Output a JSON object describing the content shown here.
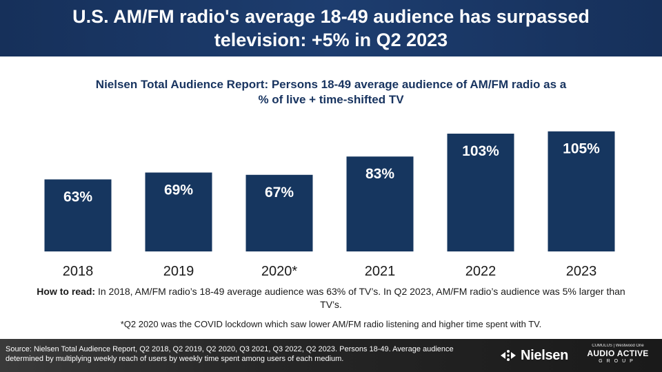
{
  "header": {
    "title": "U.S. AM/FM radio's average 18-49 audience has surpassed television: +5% in Q2 2023"
  },
  "chart_data": {
    "type": "bar",
    "title": "Nielsen Total Audience Report: Persons 18-49 average audience of AM/FM radio as a % of live + time-shifted TV",
    "categories": [
      "2018",
      "2019",
      "2020*",
      "2021",
      "2022",
      "2023"
    ],
    "values": [
      63,
      69,
      67,
      83,
      103,
      105
    ],
    "data_labels": [
      "63%",
      "69%",
      "67%",
      "83%",
      "103%",
      "105%"
    ],
    "xlabel": "",
    "ylabel": "",
    "ylim": [
      0,
      105
    ],
    "grid": false,
    "legend": "none",
    "bar_color": "#16365f",
    "label_color": "#ffffff"
  },
  "howto": {
    "lead": "How to read:",
    "text": " In 2018, AM/FM radio’s 18-49 average audience was 63% of TV’s. In Q2 2023, AM/FM radio’s audience was 5% larger than TV’s."
  },
  "note": "*Q2 2020 was the COVID lockdown which saw lower AM/FM radio listening and higher time spent with TV.",
  "footer": {
    "source": "Source: Nielsen Total Audience Report, Q2 2018, Q2 2019, Q2 2020, Q3 2021, Q3 2022, Q2 2023. Persons 18-49. Average audience determined by multiplying weekly reach of users by weekly time spent among users of each medium.",
    "nielsen_logo_text": "Nielsen",
    "aag_top": "CUMULUS | Westwood One",
    "aag_main": "AUDIO ACTIVE",
    "aag_sub": "GROUP"
  }
}
